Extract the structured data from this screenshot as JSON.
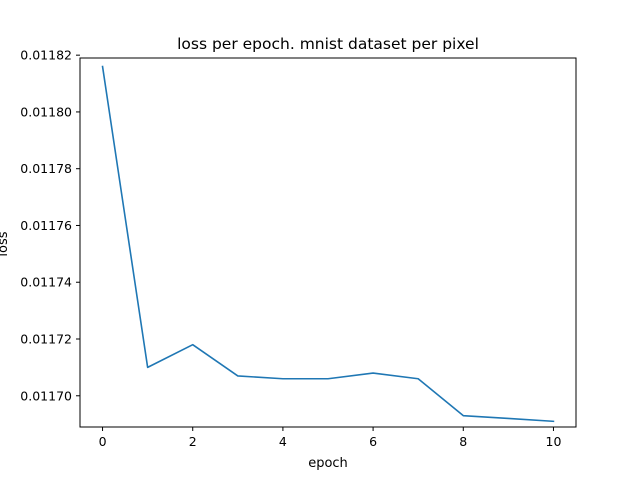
{
  "chart_data": {
    "type": "line",
    "title": "loss per epoch. mnist dataset per pixel",
    "xlabel": "epoch",
    "ylabel": "loss",
    "x": [
      0,
      1,
      2,
      3,
      4,
      5,
      6,
      7,
      8,
      9,
      10
    ],
    "series": [
      {
        "color": "#1f77b4",
        "values": [
          0.011816,
          0.01171,
          0.011718,
          0.011707,
          0.011706,
          0.011706,
          0.011708,
          0.011706,
          0.011693,
          0.011692,
          0.011691
        ]
      }
    ],
    "xlim": [
      -0.5,
      10.5
    ],
    "ylim": [
      0.011689,
      0.011819
    ],
    "xticks": [
      0,
      2,
      4,
      6,
      8,
      10
    ],
    "xtick_labels": [
      "0",
      "2",
      "4",
      "6",
      "8",
      "10"
    ],
    "yticks": [
      0.0117,
      0.01172,
      0.01174,
      0.01176,
      0.01178,
      0.0118,
      0.01182
    ],
    "ytick_labels": [
      "0.01170",
      "0.01172",
      "0.01174",
      "0.01176",
      "0.01178",
      "0.01180",
      "0.01182"
    ],
    "grid": false,
    "legend": "none"
  }
}
